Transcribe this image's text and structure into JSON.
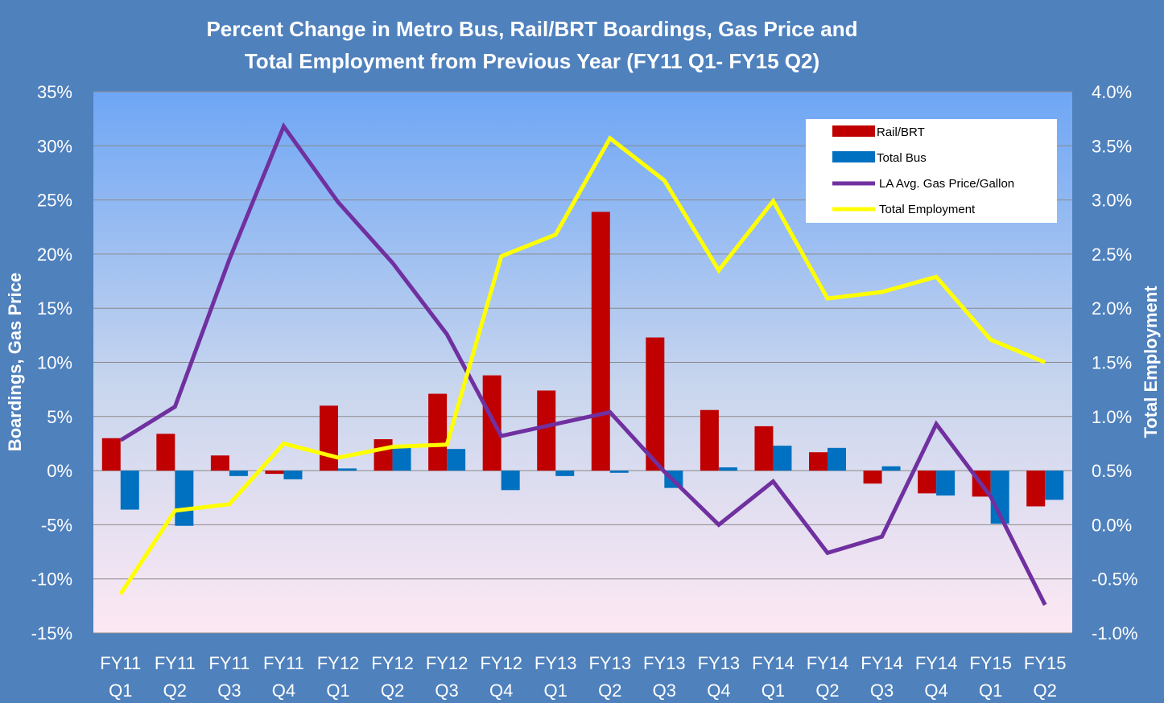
{
  "colors": {
    "background": "#4f81bd",
    "plot_top": "#6ea6f5",
    "plot_bottom": "#fde8f3",
    "rail": "#c00000",
    "bus": "#0070c0",
    "gas": "#7030a0",
    "employment": "#ffff00"
  },
  "chart_data": {
    "type": "bar",
    "title_lines": [
      "Percent Change in Metro Bus, Rail/BRT  Boardings, Gas Price and",
      "Total  Employment from Previous Year  (FY11 Q1- FY15 Q2)"
    ],
    "ylabel_left": "Boardings, Gas Price",
    "ylabel_right": "Total  Employment",
    "ylim_left": [
      -15,
      35
    ],
    "ylim_right": [
      -1.0,
      4.0
    ],
    "left_ticks": [
      "35%",
      "30%",
      "25%",
      "20%",
      "15%",
      "10%",
      "5%",
      "0%",
      "-5%",
      "-10%",
      "-15%"
    ],
    "right_ticks": [
      "4.0%",
      "3.5%",
      "3.0%",
      "2.5%",
      "2.0%",
      "1.5%",
      "1.0%",
      "0.5%",
      "0.0%",
      "-0.5%",
      "-1.0%"
    ],
    "categories": [
      [
        "FY11",
        "Q1"
      ],
      [
        "FY11",
        "Q2"
      ],
      [
        "FY11",
        "Q3"
      ],
      [
        "FY11",
        "Q4"
      ],
      [
        "FY12",
        "Q1"
      ],
      [
        "FY12",
        "Q2"
      ],
      [
        "FY12",
        "Q3"
      ],
      [
        "FY12",
        "Q4"
      ],
      [
        "FY13",
        "Q1"
      ],
      [
        "FY13",
        "Q2"
      ],
      [
        "FY13",
        "Q3"
      ],
      [
        "FY13",
        "Q4"
      ],
      [
        "FY14",
        "Q1"
      ],
      [
        "FY14",
        "Q2"
      ],
      [
        "FY14",
        "Q3"
      ],
      [
        "FY14",
        "Q4"
      ],
      [
        "FY15",
        "Q1"
      ],
      [
        "FY15",
        "Q2"
      ]
    ],
    "grid": true,
    "legend_position": "top-right",
    "series": [
      {
        "name": "Rail/BRT",
        "kind": "bar",
        "axis": "left",
        "color": "#c00000",
        "values": [
          3.0,
          3.4,
          1.4,
          -0.3,
          6.0,
          2.9,
          7.1,
          8.8,
          7.4,
          23.9,
          12.3,
          5.6,
          4.1,
          1.7,
          -1.2,
          -2.1,
          -2.4,
          -3.3
        ]
      },
      {
        "name": "Total Bus",
        "kind": "bar",
        "axis": "left",
        "color": "#0070c0",
        "values": [
          -3.6,
          -5.1,
          -0.5,
          -0.8,
          0.2,
          2.1,
          2.0,
          -1.8,
          -0.5,
          -0.2,
          -1.6,
          0.3,
          2.3,
          2.1,
          0.4,
          -2.3,
          -4.9,
          -2.7
        ]
      },
      {
        "name": "LA Avg. Gas Price/Gallon",
        "kind": "line",
        "axis": "left",
        "color": "#7030a0",
        "values": [
          2.8,
          5.9,
          19.5,
          31.8,
          24.8,
          19.2,
          12.6,
          3.2,
          4.3,
          5.4,
          -0.1,
          -5.0,
          -1.0,
          -7.6,
          -6.1,
          4.3,
          -2.4,
          -12.4
        ]
      },
      {
        "name": "Total Employment",
        "kind": "line",
        "axis": "right",
        "color": "#ffff00",
        "values": [
          -0.64,
          0.13,
          0.19,
          0.75,
          0.62,
          0.72,
          0.74,
          2.48,
          2.68,
          3.57,
          3.18,
          2.35,
          2.99,
          2.09,
          2.15,
          2.29,
          1.71,
          1.5
        ]
      }
    ]
  }
}
